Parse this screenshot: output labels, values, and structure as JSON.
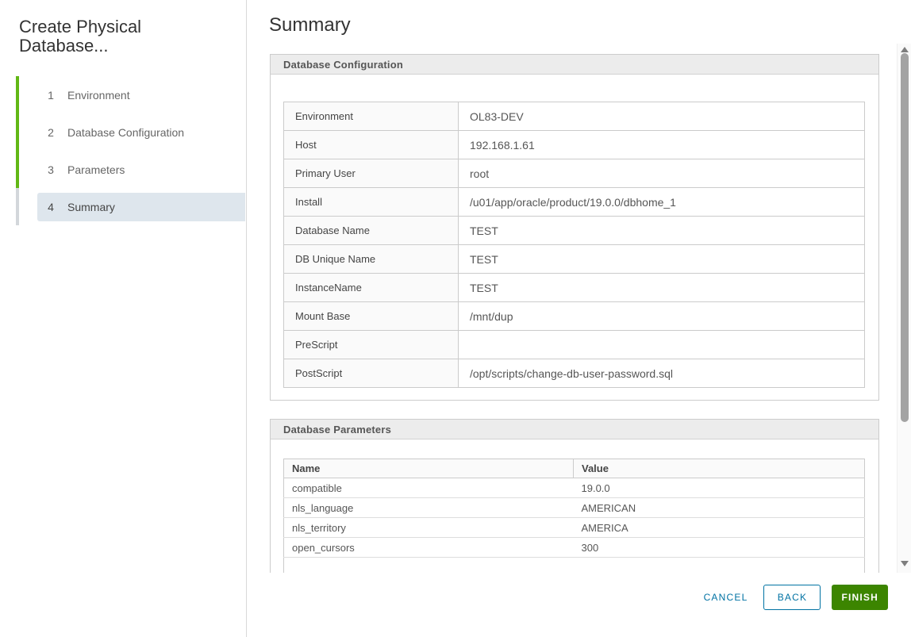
{
  "colors": {
    "progress_green": "#61B715",
    "current_step_highlight": "#DEE6ED",
    "action_blue": "#0072A3",
    "finish_green": "#3C8500"
  },
  "sidebar": {
    "title": "Create Physical Database...",
    "steps": [
      {
        "number": "1",
        "label": "Environment",
        "state": "completed"
      },
      {
        "number": "2",
        "label": "Database Configuration",
        "state": "completed"
      },
      {
        "number": "3",
        "label": "Parameters",
        "state": "completed"
      },
      {
        "number": "4",
        "label": "Summary",
        "state": "current"
      }
    ]
  },
  "main": {
    "title": "Summary",
    "database_configuration": {
      "title": "Database Configuration",
      "rows": [
        {
          "label": "Environment",
          "value": "OL83-DEV"
        },
        {
          "label": "Host",
          "value": "192.168.1.61"
        },
        {
          "label": "Primary User",
          "value": "root"
        },
        {
          "label": "Install",
          "value": "/u01/app/oracle/product/19.0.0/dbhome_1"
        },
        {
          "label": "Database Name",
          "value": "TEST"
        },
        {
          "label": "DB Unique Name",
          "value": "TEST"
        },
        {
          "label": "InstanceName",
          "value": "TEST"
        },
        {
          "label": "Mount Base",
          "value": "/mnt/dup"
        },
        {
          "label": "PreScript",
          "value": ""
        },
        {
          "label": "PostScript",
          "value": "/opt/scripts/change-db-user-password.sql"
        }
      ]
    },
    "database_parameters": {
      "title": "Database Parameters",
      "columns": [
        "Name",
        "Value"
      ],
      "rows": [
        [
          "compatible",
          "19.0.0"
        ],
        [
          "nls_language",
          "AMERICAN"
        ],
        [
          "nls_territory",
          "AMERICA"
        ],
        [
          "open_cursors",
          "300"
        ]
      ]
    }
  },
  "footer": {
    "cancel_label": "CANCEL",
    "back_label": "BACK",
    "finish_label": "FINISH"
  }
}
